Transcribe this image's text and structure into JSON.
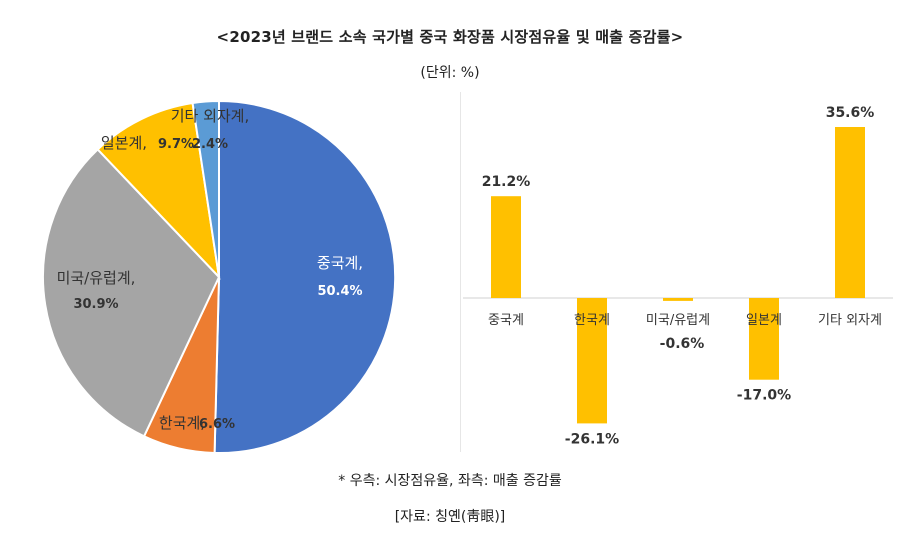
{
  "header": {
    "title": "<2023년 브랜드 소속 국가별 중국 화장품 시장점유율 및 매출 증감률>",
    "unit": "(단위: %)"
  },
  "footer": {
    "note": "* 우측: 시장점유율, 좌측: 매출 증감률",
    "source": "[자료: 칭옌(靑眼)]"
  },
  "chart_data": [
    {
      "type": "pie",
      "title": "",
      "slices": [
        {
          "label": "중국계",
          "value": 50.4,
          "value_label": "50.4%",
          "color": "#4472c4"
        },
        {
          "label": "한국계",
          "value": 6.6,
          "value_label": "6.6%",
          "color": "#ed7d31"
        },
        {
          "label": "미국/유럽계",
          "value": 30.9,
          "value_label": "30.9%",
          "color": "#a5a5a5"
        },
        {
          "label": "일본계",
          "value": 9.7,
          "value_label": "9.7%",
          "color": "#ffc000"
        },
        {
          "label": "기타 외자계",
          "value": 2.4,
          "value_label": "2.4%",
          "color": "#5b9bd5"
        }
      ]
    },
    {
      "type": "bar",
      "title": "",
      "categories": [
        "중국계",
        "한국계",
        "미국/유럽계",
        "일본계",
        "기타 외자계"
      ],
      "values": [
        21.2,
        -26.1,
        -0.6,
        -17.0,
        35.6
      ],
      "value_labels": [
        "21.2%",
        "-26.1%",
        "-0.6%",
        "-17.0%",
        "35.6%"
      ],
      "bar_color": "#ffc000",
      "ylim": [
        -30,
        40
      ],
      "grid": false,
      "xlabel": "",
      "ylabel": ""
    }
  ]
}
